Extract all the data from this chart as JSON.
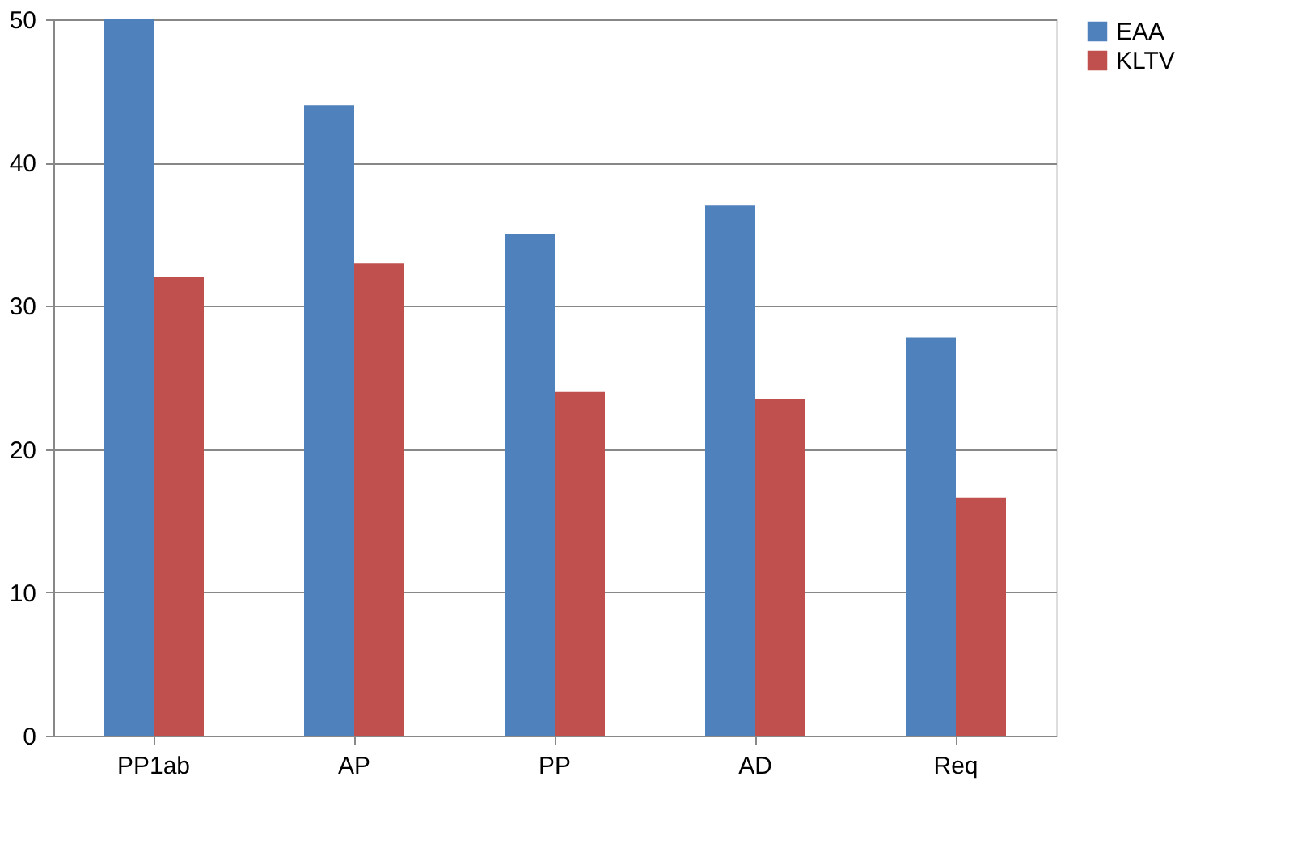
{
  "chart_data": {
    "type": "bar",
    "categories": [
      "PP1ab",
      "AP",
      "PP",
      "AD",
      "Req"
    ],
    "series": [
      {
        "name": "EAA",
        "color": "#4f81bd",
        "values": [
          50,
          44,
          35,
          37,
          27.8
        ]
      },
      {
        "name": "KLTV",
        "color": "#c0504d",
        "values": [
          32,
          33,
          24,
          23.5,
          16.6
        ]
      }
    ],
    "ylim": [
      0,
      50
    ],
    "yticks": [
      0,
      10,
      20,
      30,
      40,
      50
    ],
    "grid": "y",
    "legend": "right"
  }
}
